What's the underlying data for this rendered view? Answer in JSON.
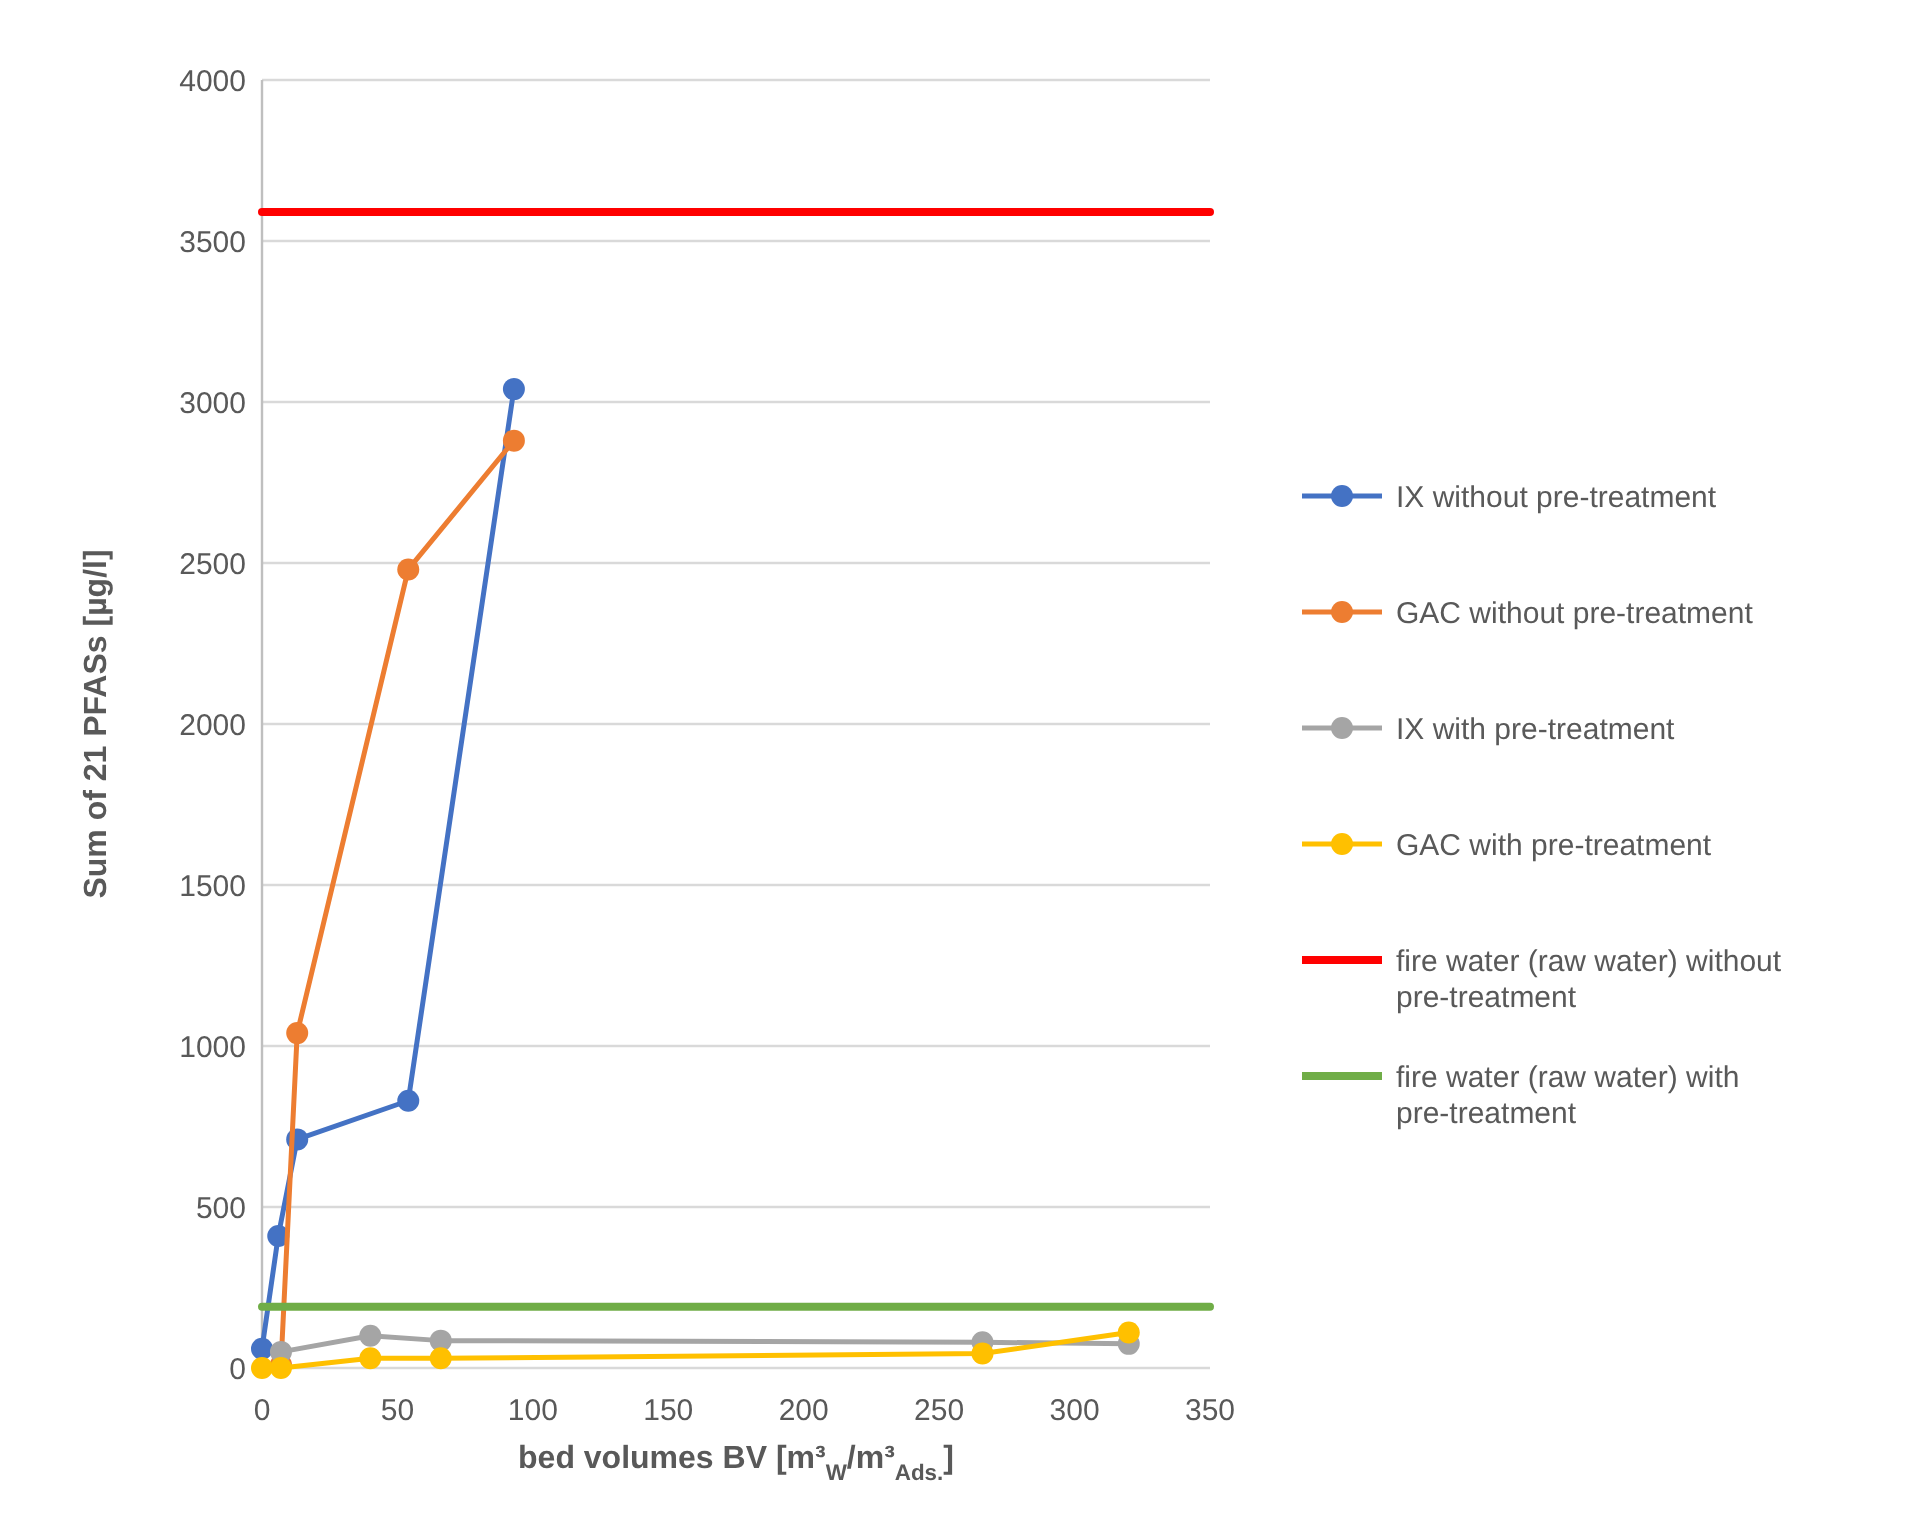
{
  "chart_data": {
    "type": "line",
    "xlabel": "bed volumes BV [m³$_{W}$/m³$_{Ads.}$]",
    "ylabel": "Sum of 21 PFASs [µg/l]",
    "xlim": [
      0,
      350
    ],
    "xticks": [
      0,
      50,
      100,
      150,
      200,
      250,
      300,
      350
    ],
    "ylim": [
      0,
      4000
    ],
    "yticks": [
      0,
      500,
      1000,
      1500,
      2000,
      2500,
      3000,
      3500,
      4000
    ],
    "grid": "y",
    "legend": "right",
    "series": [
      {
        "name": "IX without pre-treatment",
        "color": "#4472c4",
        "marker": "circle",
        "x": [
          0,
          6,
          13,
          54,
          93
        ],
        "values": [
          60,
          410,
          710,
          830,
          3040
        ]
      },
      {
        "name": "GAC without pre-treatment",
        "color": "#ed7d31",
        "marker": "circle",
        "x": [
          7,
          13,
          54,
          93
        ],
        "values": [
          10,
          1040,
          2480,
          2880
        ]
      },
      {
        "name": "IX with pre-treatment",
        "color": "#a5a5a5",
        "marker": "circle",
        "x": [
          7,
          40,
          66,
          266,
          320
        ],
        "values": [
          50,
          100,
          85,
          80,
          75
        ]
      },
      {
        "name": "GAC with pre-treatment",
        "color": "#ffc000",
        "marker": "circle",
        "x": [
          0,
          7,
          40,
          66,
          266,
          320
        ],
        "values": [
          0,
          0,
          30,
          30,
          45,
          110
        ]
      },
      {
        "name": "fire water (raw water) without pre-treatment",
        "color": "#ff0000",
        "marker": "none",
        "x": [
          0,
          350
        ],
        "values": [
          3590,
          3590
        ]
      },
      {
        "name": "fire water (raw water) with pre-treatment",
        "color": "#70ad47",
        "marker": "none",
        "x": [
          0,
          350
        ],
        "values": [
          190,
          190
        ]
      }
    ]
  }
}
